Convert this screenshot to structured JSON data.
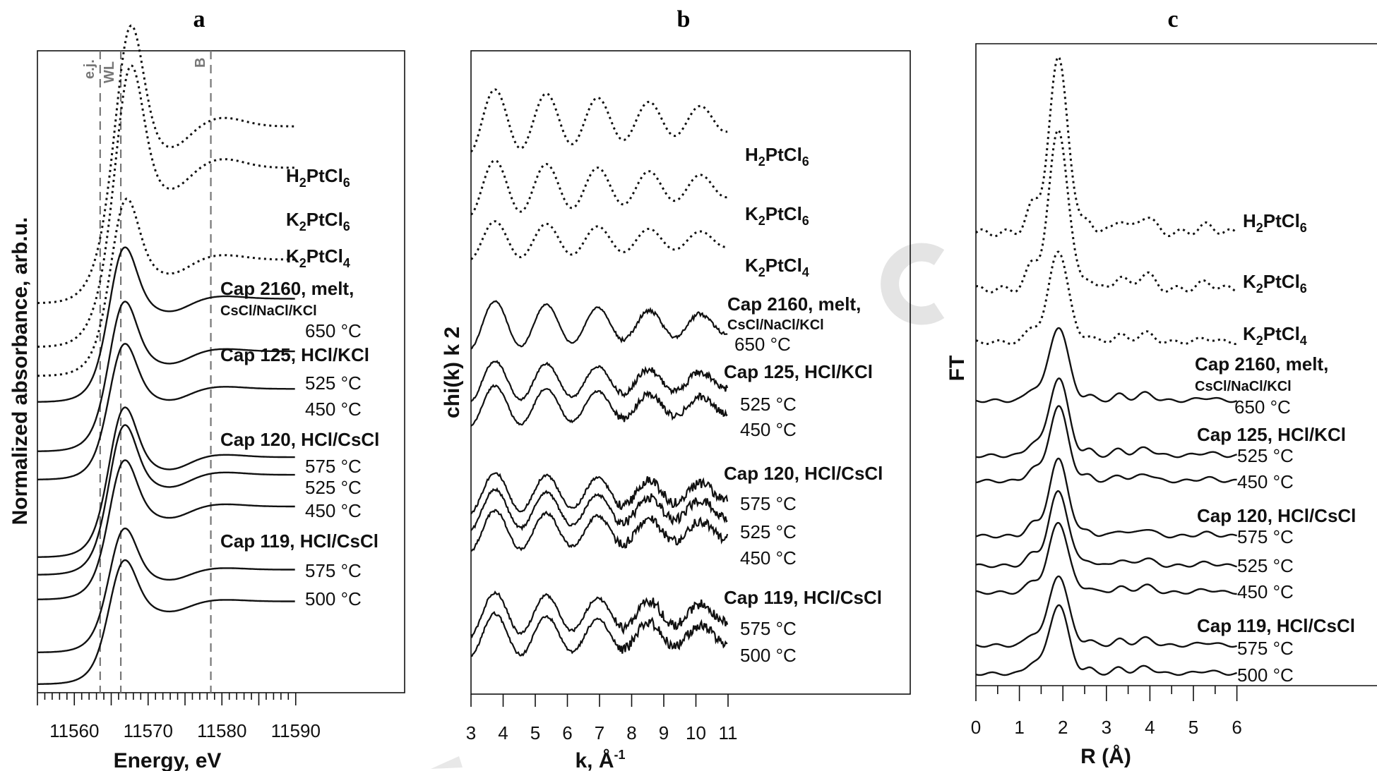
{
  "chart_data": [
    {
      "panel": "a",
      "type": "line",
      "xlabel": "Energy, eV",
      "ylabel": "Normalized absorbance, arb.u.",
      "x_ticks": [
        "11560",
        "11570",
        "11580",
        "11590"
      ],
      "xlim": [
        11555,
        11590
      ],
      "markers": [
        {
          "label": "e.j.",
          "x": 11563.5
        },
        {
          "label": "WL",
          "x": 11566.3
        },
        {
          "label": "B",
          "x": 11578.5
        }
      ],
      "series": [
        {
          "name": "H2PtCl6",
          "style": "dotted"
        },
        {
          "name": "K2PtCl6",
          "style": "dotted"
        },
        {
          "name": "K2PtCl4",
          "style": "dotted"
        },
        {
          "name": "Cap 2160, melt, CsCl/NaCl/KCl 650 °C",
          "style": "solid"
        },
        {
          "name": "Cap 125, HCl/KCl 525 °C",
          "style": "solid"
        },
        {
          "name": "Cap 125, HCl/KCl 450 °C",
          "style": "solid"
        },
        {
          "name": "Cap 120, HCl/CsCl 575 °C",
          "style": "solid"
        },
        {
          "name": "Cap 120, HCl/CsCl 525 °C",
          "style": "solid"
        },
        {
          "name": "Cap 120, HCl/CsCl 450 °C",
          "style": "solid"
        },
        {
          "name": "Cap 119, HCl/CsCl 575 °C",
          "style": "solid"
        },
        {
          "name": "Cap 119, HCl/CsCl 500 °C",
          "style": "solid"
        }
      ]
    },
    {
      "panel": "b",
      "type": "line",
      "xlabel": "k, Å-1",
      "ylabel": "chi(k) k 2",
      "x_ticks": [
        "3",
        "4",
        "5",
        "6",
        "7",
        "8",
        "9",
        "10",
        "11"
      ],
      "xlim": [
        3,
        11
      ],
      "series_names": [
        "H2PtCl6",
        "K2PtCl6",
        "K2PtCl4",
        "Cap 2160 650 °C",
        "Cap 125 525 °C",
        "Cap 125 450 °C",
        "Cap 120 575 °C",
        "Cap 120 525 °C",
        "Cap 120 450 °C",
        "Cap 119 575 °C",
        "Cap 119 500 °C"
      ]
    },
    {
      "panel": "c",
      "type": "line",
      "xlabel": "R (Å)",
      "ylabel": "FT",
      "x_ticks": [
        "0",
        "1",
        "2",
        "3",
        "4",
        "5",
        "6"
      ],
      "xlim": [
        0,
        6
      ],
      "main_peak_R": 1.9,
      "series_names": [
        "H2PtCl6",
        "K2PtCl6",
        "K2PtCl4",
        "Cap 2160 650 °C",
        "Cap 125 525 °C",
        "Cap 125 450 °C",
        "Cap 120 575 °C",
        "Cap 120 525 °C",
        "Cap 120 450 °C",
        "Cap 119 575 °C",
        "Cap 119 500 °C"
      ]
    }
  ],
  "panels": {
    "a": {
      "letter": "a",
      "xlabel": "Energy, eV",
      "ylabel": "Normalized absorbance, arb.u.",
      "marker_ej": "e.j.",
      "marker_wl": "WL",
      "marker_b": "B"
    },
    "b": {
      "letter": "b",
      "ylabel": "chi(k) k 2"
    },
    "c": {
      "letter": "c",
      "xlabel": "R (Å)",
      "ylabel": "FT"
    }
  },
  "refs": {
    "h2": {
      "a": "H",
      "b": "2",
      "c": "PtCl",
      "d": "6"
    },
    "k6": {
      "a": "K",
      "b": "2",
      "c": "PtCl",
      "d": "6"
    },
    "k4": {
      "a": "K",
      "b": "2",
      "c": "PtCl",
      "d": "4"
    }
  },
  "k_axis": {
    "main": "k, Å",
    "sup": "-1"
  },
  "samples": {
    "cap2160": "Cap 2160, melt,",
    "cap2160_sub": "CsCl/NaCl/KCl",
    "cap125": "Cap 125, HCl/KCl",
    "cap120": "Cap 120, HCl/CsCl",
    "cap119": "Cap 119, HCl/CsCl"
  },
  "temps": {
    "t650": "650 °C",
    "t525": "525 °C",
    "t450": "450 °C",
    "t575": "575 °C",
    "t500": "500 °C"
  },
  "colors": {
    "line": "#111111",
    "marker": "#777777",
    "watermark": "#dedede"
  }
}
